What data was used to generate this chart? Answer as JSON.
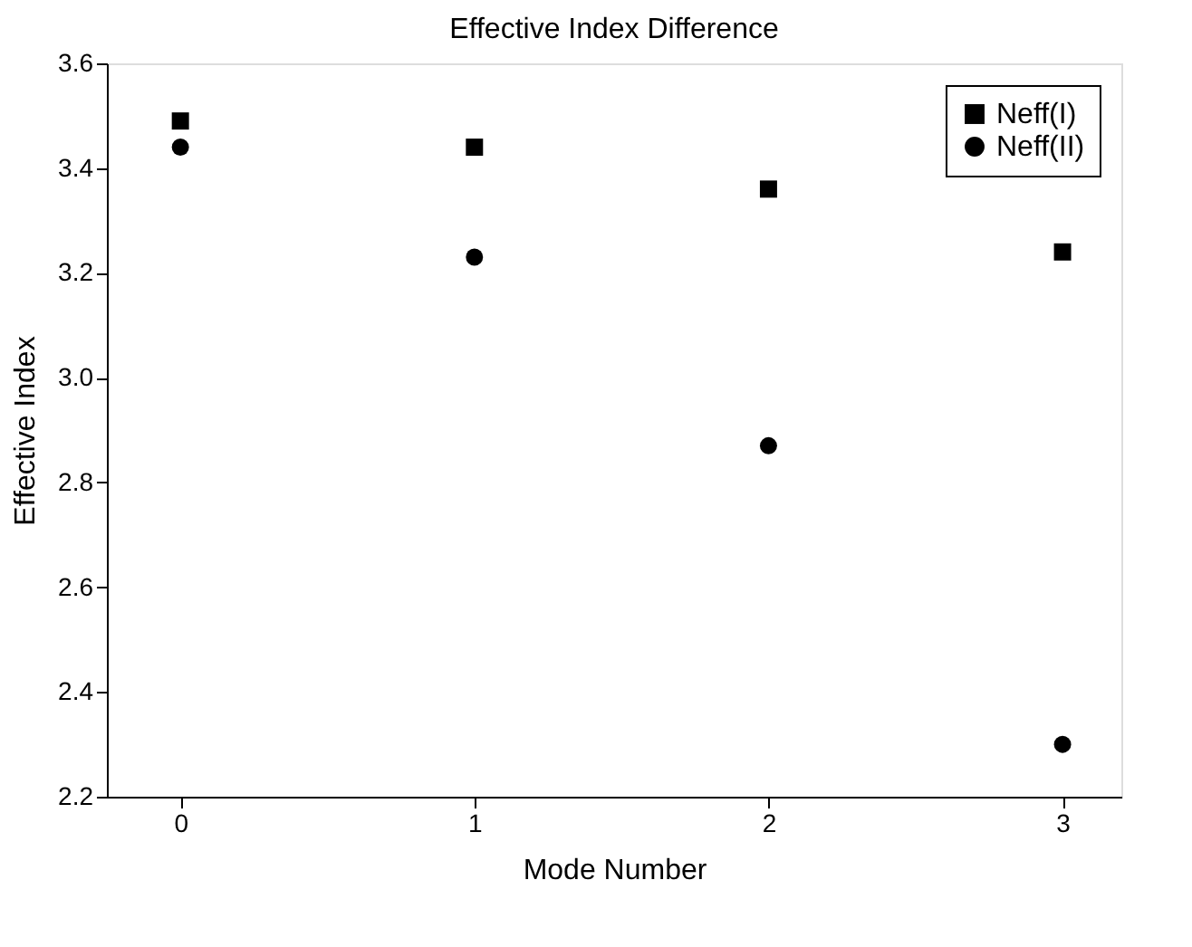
{
  "chart_data": {
    "type": "scatter",
    "title": "Effective Index Difference",
    "xlabel": "Mode Number",
    "ylabel": "Effective Index",
    "x": [
      0,
      1,
      2,
      3
    ],
    "series": [
      {
        "name": "Neff(I)",
        "color": "#000000",
        "marker": "square",
        "values": [
          3.49,
          3.44,
          3.36,
          3.24
        ]
      },
      {
        "name": "Neff(II)",
        "color": "#000000",
        "marker": "circle",
        "values": [
          3.44,
          3.23,
          2.87,
          2.3
        ]
      }
    ],
    "xlim": [
      -0.25,
      3.2
    ],
    "xticks": [
      0,
      1,
      2,
      3
    ],
    "ylim": [
      2.2,
      3.6
    ],
    "yticks": [
      2.2,
      2.4,
      2.6,
      2.8,
      {
        "value": 3,
        "label": "3.0"
      },
      3.2,
      3.4,
      3.6
    ],
    "grid": false,
    "legend": "top right"
  }
}
